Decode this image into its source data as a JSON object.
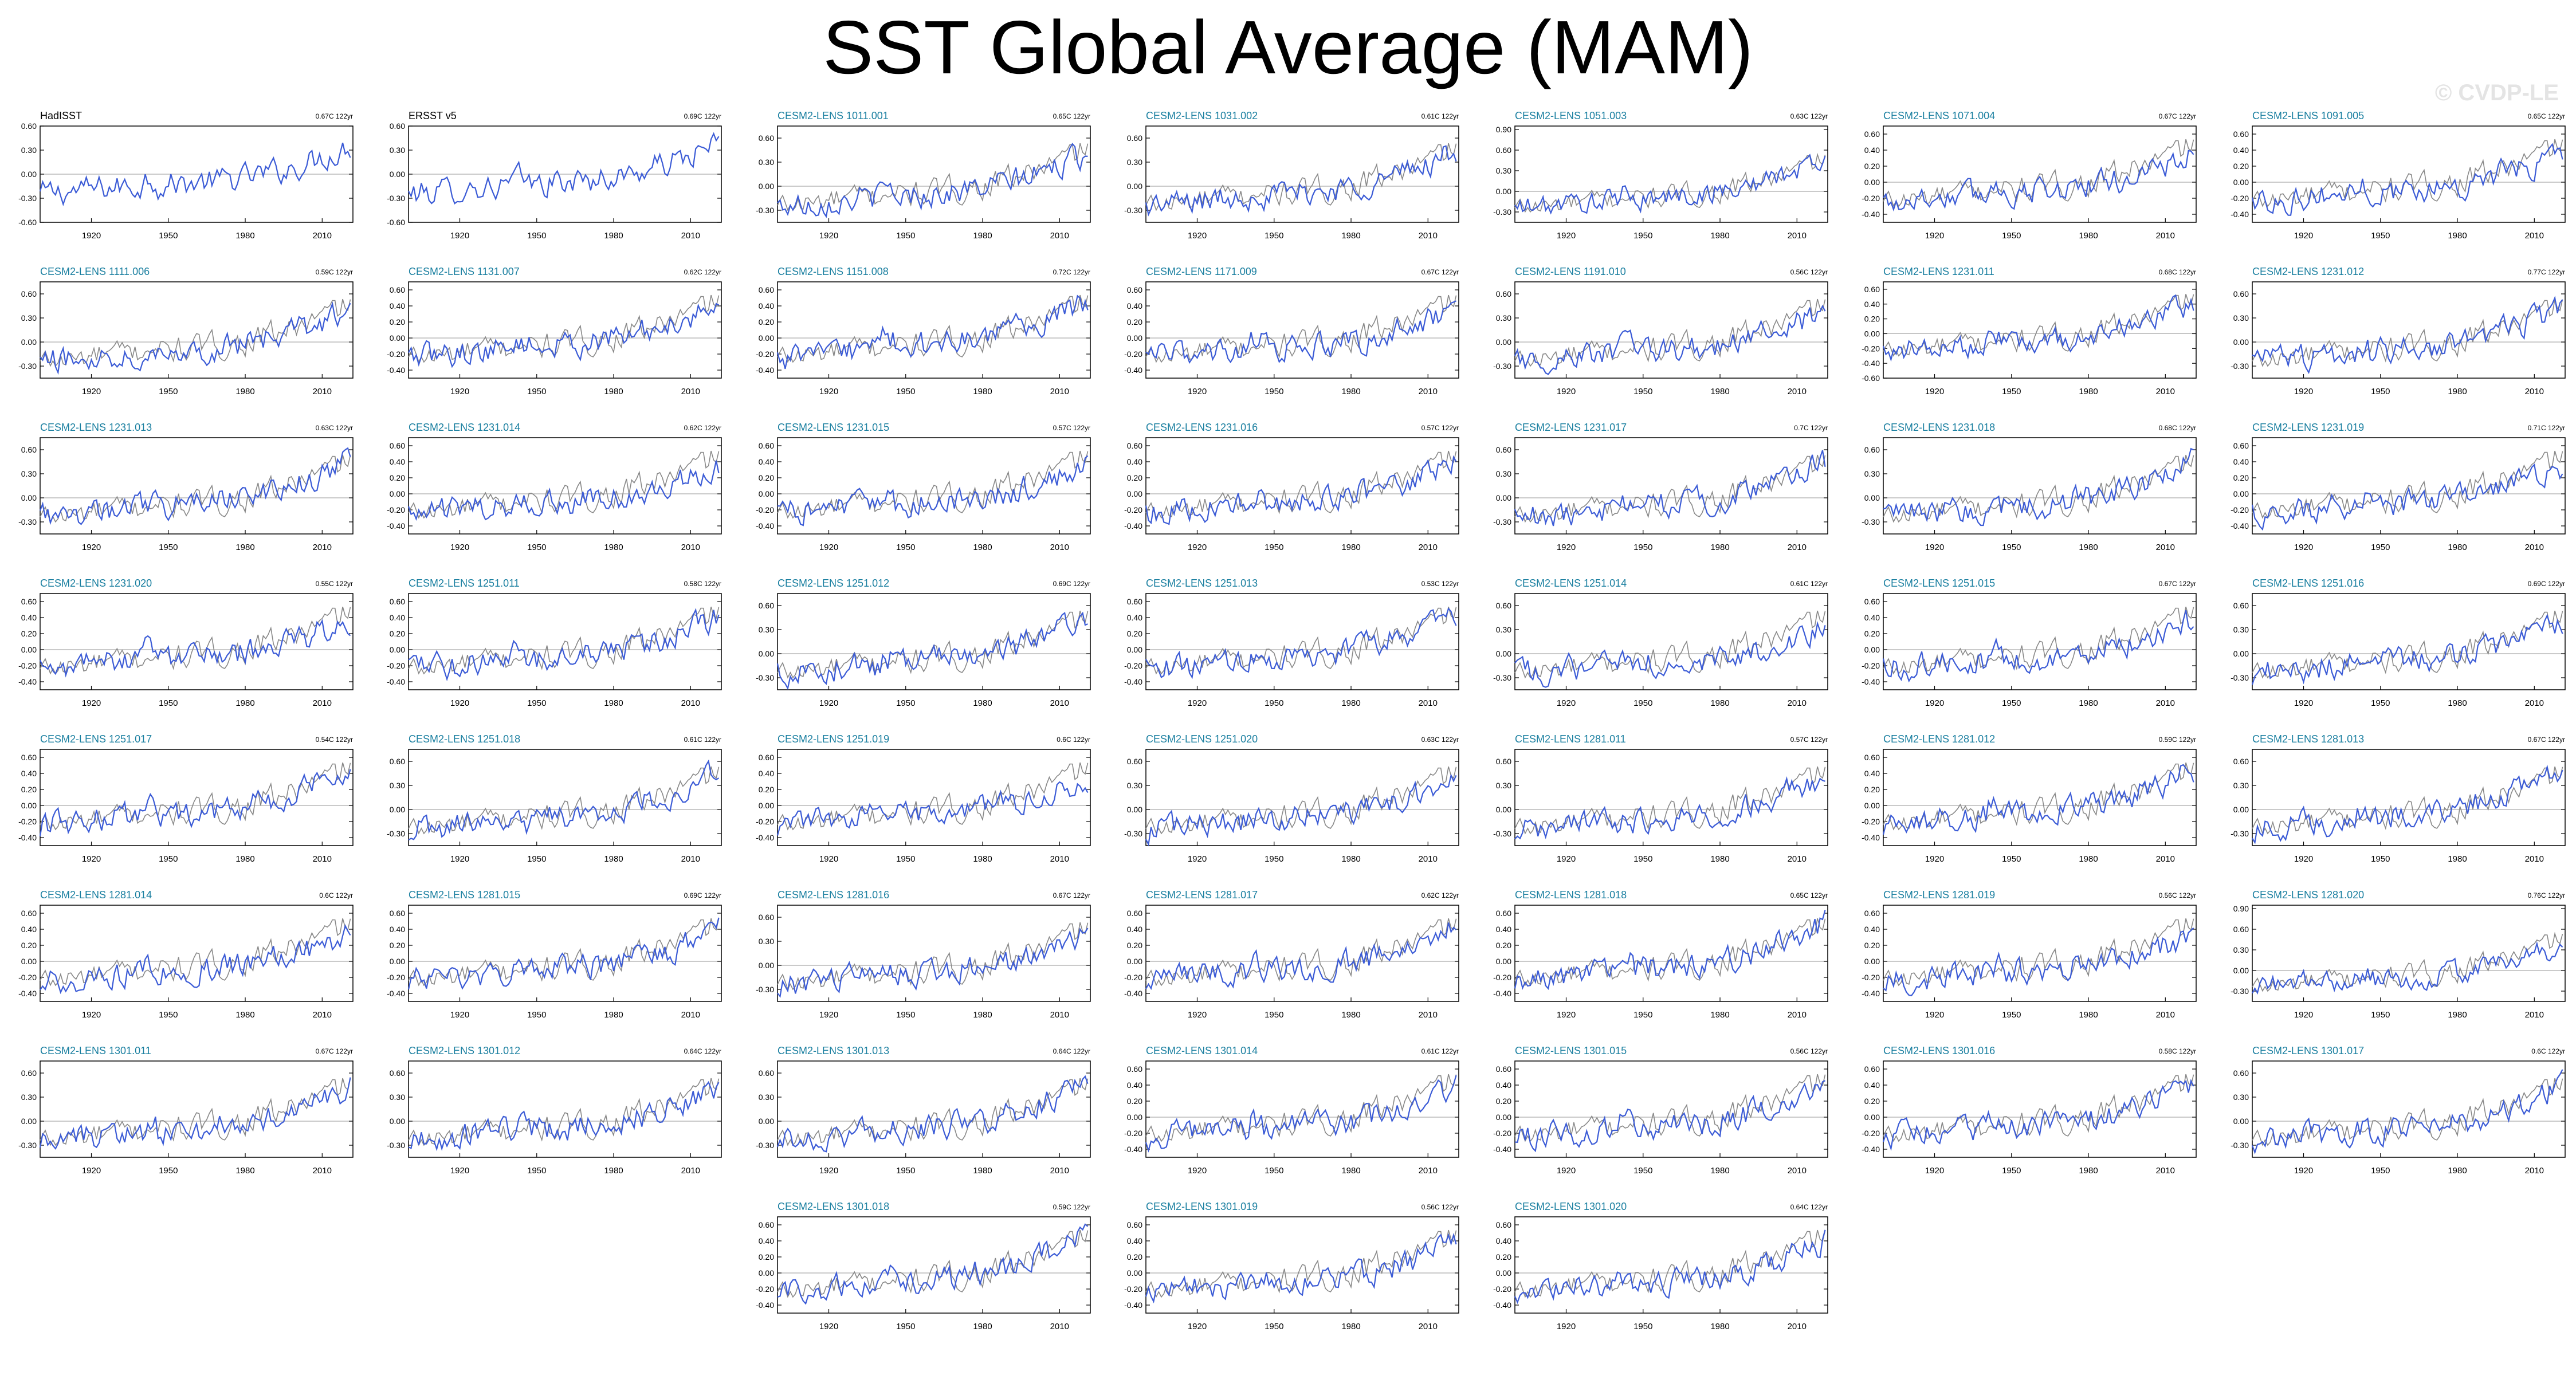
{
  "title": "SST Global Average (MAM)",
  "watermark": "© CVDP-LE",
  "colors": {
    "model_line": "#3b5bd6",
    "obs_line": "#888888",
    "model_title": "#1a7fa0",
    "obs_title": "#000000",
    "zero_line": "#aaaaaa"
  },
  "chart_data": {
    "type": "line",
    "xlabel_ticks": [
      1920,
      1950,
      1980,
      2010
    ],
    "xlim": [
      1900,
      2022
    ],
    "panels": [
      {
        "name": "HadISST",
        "trend": "0.67C 122yr",
        "obs": true,
        "yticks": [
          "0.60",
          "0.30",
          "0.00",
          "-0.30",
          "-0.60"
        ],
        "ylim": [
          -0.6,
          0.6
        ]
      },
      {
        "name": "ERSST v5",
        "trend": "0.69C 122yr",
        "obs": true,
        "yticks": [
          "0.60",
          "0.30",
          "0.00",
          "-0.30",
          "-0.60"
        ],
        "ylim": [
          -0.6,
          0.6
        ]
      },
      {
        "name": "CESM2-LENS 1011.001",
        "trend": "0.65C 122yr",
        "yticks": [
          "0.60",
          "0.30",
          "0.00",
          "-0.30"
        ],
        "ylim": [
          -0.45,
          0.75
        ]
      },
      {
        "name": "CESM2-LENS 1031.002",
        "trend": "0.61C 122yr",
        "yticks": [
          "0.60",
          "0.30",
          "0.00",
          "-0.30"
        ],
        "ylim": [
          -0.45,
          0.75
        ]
      },
      {
        "name": "CESM2-LENS 1051.003",
        "trend": "0.63C 122yr",
        "yticks": [
          "0.90",
          "0.60",
          "0.30",
          "0.00",
          "-0.30"
        ],
        "ylim": [
          -0.45,
          0.95
        ]
      },
      {
        "name": "CESM2-LENS 1071.004",
        "trend": "0.67C 122yr",
        "yticks": [
          "0.60",
          "0.40",
          "0.20",
          "0.00",
          "-0.20",
          "-0.40"
        ],
        "ylim": [
          -0.5,
          0.7
        ]
      },
      {
        "name": "CESM2-LENS 1091.005",
        "trend": "0.65C 122yr",
        "yticks": [
          "0.60",
          "0.40",
          "0.20",
          "0.00",
          "-0.20",
          "-0.40"
        ],
        "ylim": [
          -0.5,
          0.7
        ]
      },
      {
        "name": "CESM2-LENS 1111.006",
        "trend": "0.59C 122yr",
        "yticks": [
          "0.60",
          "0.30",
          "0.00",
          "-0.30"
        ],
        "ylim": [
          -0.45,
          0.75
        ]
      },
      {
        "name": "CESM2-LENS 1131.007",
        "trend": "0.62C 122yr",
        "yticks": [
          "0.60",
          "0.40",
          "0.20",
          "0.00",
          "-0.20",
          "-0.40"
        ],
        "ylim": [
          -0.5,
          0.7
        ]
      },
      {
        "name": "CESM2-LENS 1151.008",
        "trend": "0.72C 122yr",
        "yticks": [
          "0.60",
          "0.40",
          "0.20",
          "0.00",
          "-0.20",
          "-0.40"
        ],
        "ylim": [
          -0.5,
          0.7
        ]
      },
      {
        "name": "CESM2-LENS 1171.009",
        "trend": "0.67C 122yr",
        "yticks": [
          "0.60",
          "0.40",
          "0.20",
          "0.00",
          "-0.20",
          "-0.40"
        ],
        "ylim": [
          -0.5,
          0.7
        ]
      },
      {
        "name": "CESM2-LENS 1191.010",
        "trend": "0.56C 122yr",
        "yticks": [
          "0.60",
          "0.30",
          "0.00",
          "-0.30"
        ],
        "ylim": [
          -0.45,
          0.75
        ]
      },
      {
        "name": "CESM2-LENS 1231.011",
        "trend": "0.68C 122yr",
        "yticks": [
          "0.60",
          "0.40",
          "0.20",
          "0.00",
          "-0.20",
          "-0.40",
          "-0.60"
        ],
        "ylim": [
          -0.6,
          0.7
        ]
      },
      {
        "name": "CESM2-LENS 1231.012",
        "trend": "0.77C 122yr",
        "yticks": [
          "0.60",
          "0.30",
          "0.00",
          "-0.30"
        ],
        "ylim": [
          -0.45,
          0.75
        ]
      },
      {
        "name": "CESM2-LENS 1231.013",
        "trend": "0.63C 122yr",
        "yticks": [
          "0.60",
          "0.30",
          "0.00",
          "-0.30"
        ],
        "ylim": [
          -0.45,
          0.75
        ]
      },
      {
        "name": "CESM2-LENS 1231.014",
        "trend": "0.62C 122yr",
        "yticks": [
          "0.60",
          "0.40",
          "0.20",
          "0.00",
          "-0.20",
          "-0.40"
        ],
        "ylim": [
          -0.5,
          0.7
        ]
      },
      {
        "name": "CESM2-LENS 1231.015",
        "trend": "0.57C 122yr",
        "yticks": [
          "0.60",
          "0.40",
          "0.20",
          "0.00",
          "-0.20",
          "-0.40"
        ],
        "ylim": [
          -0.5,
          0.7
        ]
      },
      {
        "name": "CESM2-LENS 1231.016",
        "trend": "0.57C 122yr",
        "yticks": [
          "0.60",
          "0.40",
          "0.20",
          "0.00",
          "-0.20",
          "-0.40"
        ],
        "ylim": [
          -0.5,
          0.7
        ]
      },
      {
        "name": "CESM2-LENS 1231.017",
        "trend": "0.7C 122yr",
        "yticks": [
          "0.60",
          "0.30",
          "0.00",
          "-0.30"
        ],
        "ylim": [
          -0.45,
          0.75
        ]
      },
      {
        "name": "CESM2-LENS 1231.018",
        "trend": "0.68C 122yr",
        "yticks": [
          "0.60",
          "0.30",
          "0.00",
          "-0.30"
        ],
        "ylim": [
          -0.45,
          0.75
        ]
      },
      {
        "name": "CESM2-LENS 1231.019",
        "trend": "0.71C 122yr",
        "yticks": [
          "0.60",
          "0.40",
          "0.20",
          "0.00",
          "-0.20",
          "-0.40"
        ],
        "ylim": [
          -0.5,
          0.7
        ]
      },
      {
        "name": "CESM2-LENS 1231.020",
        "trend": "0.55C 122yr",
        "yticks": [
          "0.60",
          "0.40",
          "0.20",
          "0.00",
          "-0.20",
          "-0.40"
        ],
        "ylim": [
          -0.5,
          0.7
        ]
      },
      {
        "name": "CESM2-LENS 1251.011",
        "trend": "0.58C 122yr",
        "yticks": [
          "0.60",
          "0.40",
          "0.20",
          "0.00",
          "-0.20",
          "-0.40"
        ],
        "ylim": [
          -0.5,
          0.7
        ]
      },
      {
        "name": "CESM2-LENS 1251.012",
        "trend": "0.69C 122yr",
        "yticks": [
          "0.60",
          "0.30",
          "0.00",
          "-0.30"
        ],
        "ylim": [
          -0.45,
          0.75
        ]
      },
      {
        "name": "CESM2-LENS 1251.013",
        "trend": "0.53C 122yr",
        "yticks": [
          "0.60",
          "0.40",
          "0.20",
          "0.00",
          "-0.20",
          "-0.40"
        ],
        "ylim": [
          -0.5,
          0.7
        ]
      },
      {
        "name": "CESM2-LENS 1251.014",
        "trend": "0.61C 122yr",
        "yticks": [
          "0.60",
          "0.30",
          "0.00",
          "-0.30"
        ],
        "ylim": [
          -0.45,
          0.75
        ]
      },
      {
        "name": "CESM2-LENS 1251.015",
        "trend": "0.67C 122yr",
        "yticks": [
          "0.60",
          "0.40",
          "0.20",
          "0.00",
          "-0.20",
          "-0.40"
        ],
        "ylim": [
          -0.5,
          0.7
        ]
      },
      {
        "name": "CESM2-LENS 1251.016",
        "trend": "0.69C 122yr",
        "yticks": [
          "0.60",
          "0.30",
          "0.00",
          "-0.30"
        ],
        "ylim": [
          -0.45,
          0.75
        ]
      },
      {
        "name": "CESM2-LENS 1251.017",
        "trend": "0.54C 122yr",
        "yticks": [
          "0.60",
          "0.40",
          "0.20",
          "0.00",
          "-0.20",
          "-0.40"
        ],
        "ylim": [
          -0.5,
          0.7
        ]
      },
      {
        "name": "CESM2-LENS 1251.018",
        "trend": "0.61C 122yr",
        "yticks": [
          "0.60",
          "0.30",
          "0.00",
          "-0.30"
        ],
        "ylim": [
          -0.45,
          0.75
        ]
      },
      {
        "name": "CESM2-LENS 1251.019",
        "trend": "0.6C 122yr",
        "yticks": [
          "0.60",
          "0.40",
          "0.20",
          "0.00",
          "-0.20",
          "-0.40"
        ],
        "ylim": [
          -0.5,
          0.7
        ]
      },
      {
        "name": "CESM2-LENS 1251.020",
        "trend": "0.63C 122yr",
        "yticks": [
          "0.60",
          "0.30",
          "0.00",
          "-0.30"
        ],
        "ylim": [
          -0.45,
          0.75
        ]
      },
      {
        "name": "CESM2-LENS 1281.011",
        "trend": "0.57C 122yr",
        "yticks": [
          "0.60",
          "0.30",
          "0.00",
          "-0.30"
        ],
        "ylim": [
          -0.45,
          0.75
        ]
      },
      {
        "name": "CESM2-LENS 1281.012",
        "trend": "0.59C 122yr",
        "yticks": [
          "0.60",
          "0.40",
          "0.20",
          "0.00",
          "-0.20",
          "-0.40"
        ],
        "ylim": [
          -0.5,
          0.7
        ]
      },
      {
        "name": "CESM2-LENS 1281.013",
        "trend": "0.67C 122yr",
        "yticks": [
          "0.60",
          "0.30",
          "0.00",
          "-0.30"
        ],
        "ylim": [
          -0.45,
          0.75
        ]
      },
      {
        "name": "CESM2-LENS 1281.014",
        "trend": "0.6C 122yr",
        "yticks": [
          "0.60",
          "0.40",
          "0.20",
          "0.00",
          "-0.20",
          "-0.40"
        ],
        "ylim": [
          -0.5,
          0.7
        ]
      },
      {
        "name": "CESM2-LENS 1281.015",
        "trend": "0.69C 122yr",
        "yticks": [
          "0.60",
          "0.40",
          "0.20",
          "0.00",
          "-0.20",
          "-0.40"
        ],
        "ylim": [
          -0.5,
          0.7
        ]
      },
      {
        "name": "CESM2-LENS 1281.016",
        "trend": "0.67C 122yr",
        "yticks": [
          "0.60",
          "0.30",
          "0.00",
          "-0.30"
        ],
        "ylim": [
          -0.45,
          0.75
        ]
      },
      {
        "name": "CESM2-LENS 1281.017",
        "trend": "0.62C 122yr",
        "yticks": [
          "0.60",
          "0.40",
          "0.20",
          "0.00",
          "-0.20",
          "-0.40"
        ],
        "ylim": [
          -0.5,
          0.7
        ]
      },
      {
        "name": "CESM2-LENS 1281.018",
        "trend": "0.65C 122yr",
        "yticks": [
          "0.60",
          "0.40",
          "0.20",
          "0.00",
          "-0.20",
          "-0.40"
        ],
        "ylim": [
          -0.5,
          0.7
        ]
      },
      {
        "name": "CESM2-LENS 1281.019",
        "trend": "0.56C 122yr",
        "yticks": [
          "0.60",
          "0.40",
          "0.20",
          "0.00",
          "-0.20",
          "-0.40"
        ],
        "ylim": [
          -0.5,
          0.7
        ]
      },
      {
        "name": "CESM2-LENS 1281.020",
        "trend": "0.76C 122yr",
        "yticks": [
          "0.90",
          "0.60",
          "0.30",
          "0.00",
          "-0.30"
        ],
        "ylim": [
          -0.45,
          0.95
        ]
      },
      {
        "name": "CESM2-LENS 1301.011",
        "trend": "0.67C 122yr",
        "yticks": [
          "0.60",
          "0.30",
          "0.00",
          "-0.30"
        ],
        "ylim": [
          -0.45,
          0.75
        ]
      },
      {
        "name": "CESM2-LENS 1301.012",
        "trend": "0.64C 122yr",
        "yticks": [
          "0.60",
          "0.30",
          "0.00",
          "-0.30"
        ],
        "ylim": [
          -0.45,
          0.75
        ]
      },
      {
        "name": "CESM2-LENS 1301.013",
        "trend": "0.64C 122yr",
        "yticks": [
          "0.60",
          "0.30",
          "0.00",
          "-0.30"
        ],
        "ylim": [
          -0.45,
          0.75
        ]
      },
      {
        "name": "CESM2-LENS 1301.014",
        "trend": "0.61C 122yr",
        "yticks": [
          "0.60",
          "0.40",
          "0.20",
          "0.00",
          "-0.20",
          "-0.40"
        ],
        "ylim": [
          -0.5,
          0.7
        ]
      },
      {
        "name": "CESM2-LENS 1301.015",
        "trend": "0.56C 122yr",
        "yticks": [
          "0.60",
          "0.40",
          "0.20",
          "0.00",
          "-0.20",
          "-0.40"
        ],
        "ylim": [
          -0.5,
          0.7
        ]
      },
      {
        "name": "CESM2-LENS 1301.016",
        "trend": "0.58C 122yr",
        "yticks": [
          "0.60",
          "0.40",
          "0.20",
          "0.00",
          "-0.20",
          "-0.40"
        ],
        "ylim": [
          -0.5,
          0.7
        ]
      },
      {
        "name": "CESM2-LENS 1301.017",
        "trend": "0.6C 122yr",
        "yticks": [
          "0.60",
          "0.30",
          "0.00",
          "-0.30"
        ],
        "ylim": [
          -0.45,
          0.75
        ]
      },
      {
        "name": "CESM2-LENS 1301.018",
        "trend": "0.59C 122yr",
        "yticks": [
          "0.60",
          "0.40",
          "0.20",
          "0.00",
          "-0.20",
          "-0.40"
        ],
        "ylim": [
          -0.5,
          0.7
        ]
      },
      {
        "name": "CESM2-LENS 1301.019",
        "trend": "0.56C 122yr",
        "yticks": [
          "0.60",
          "0.40",
          "0.20",
          "0.00",
          "-0.20",
          "-0.40"
        ],
        "ylim": [
          -0.5,
          0.7
        ]
      },
      {
        "name": "CESM2-LENS 1301.020",
        "trend": "0.64C 122yr",
        "yticks": [
          "0.60",
          "0.40",
          "0.20",
          "0.00",
          "-0.20",
          "-0.40"
        ],
        "ylim": [
          -0.5,
          0.7
        ]
      }
    ]
  }
}
